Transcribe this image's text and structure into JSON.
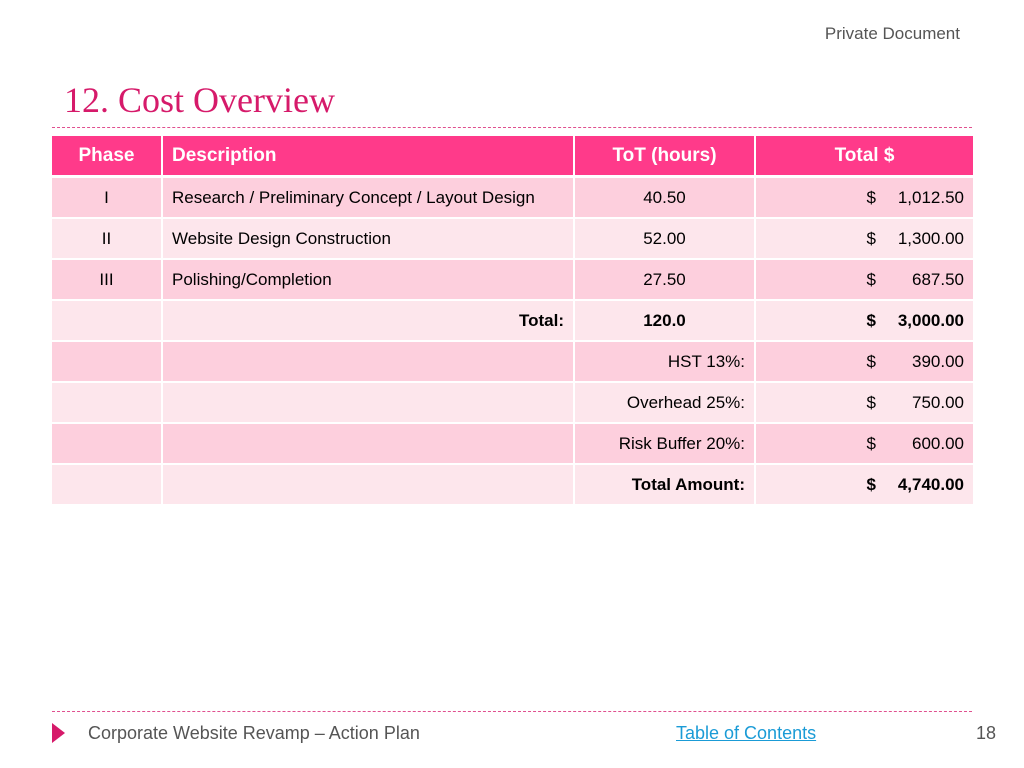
{
  "header": {
    "label": "Private Document",
    "title": "12. Cost Overview"
  },
  "table": {
    "columns": [
      "Phase",
      "Description",
      "ToT (hours)",
      "Total $"
    ],
    "currency_symbol": "$",
    "rows": [
      {
        "phase": "I",
        "description": "Research / Preliminary Concept / Layout Design",
        "hours": "40.50",
        "total": "1,012.50"
      },
      {
        "phase": "II",
        "description": "Website Design Construction",
        "hours": "52.00",
        "total": "1,300.00"
      },
      {
        "phase": "III",
        "description": "Polishing/Completion",
        "hours": "27.50",
        "total": "687.50"
      }
    ],
    "summary": {
      "total_label": "Total:",
      "total_hours": "120.0",
      "total_amount": "3,000.00",
      "hst_label": "HST 13%:",
      "hst_amount": "390.00",
      "overhead_label": "Overhead 25%:",
      "overhead_amount": "750.00",
      "risk_label": "Risk Buffer 20%:",
      "risk_amount": "600.00",
      "grand_label": "Total Amount:",
      "grand_amount": "4,740.00"
    }
  },
  "footer": {
    "text": "Corporate Website Revamp – Action Plan",
    "link": "Table of Contents",
    "page_number": "18"
  },
  "colors": {
    "accent": "#d61a6a",
    "header_fill": "#ff3a8a",
    "row_dark": "#fdcfdd",
    "row_light": "#fde6ec",
    "link": "#1a9bd6"
  }
}
